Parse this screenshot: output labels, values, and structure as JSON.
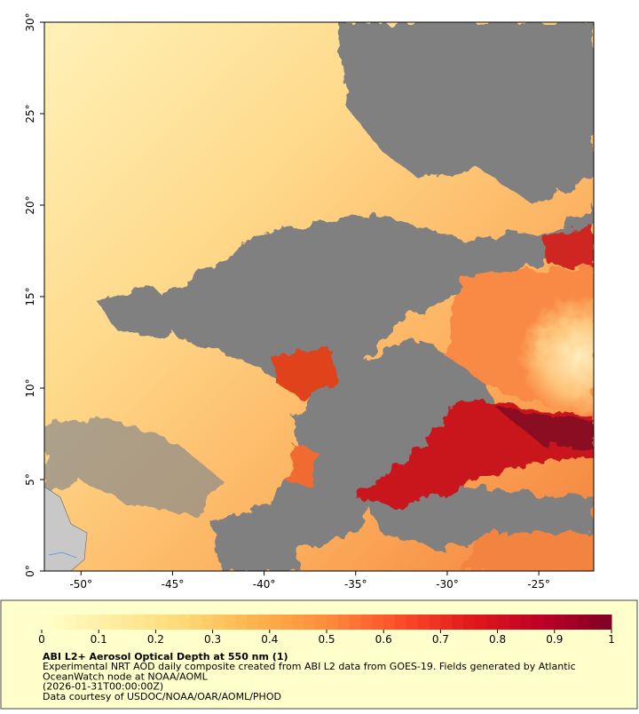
{
  "map": {
    "xlim": [
      -52,
      -22
    ],
    "ylim": [
      0,
      30
    ],
    "xticks": [
      {
        "value": -50,
        "label": "-50°"
      },
      {
        "value": -45,
        "label": "-45°"
      },
      {
        "value": -40,
        "label": "-40°"
      },
      {
        "value": -35,
        "label": "-35°"
      },
      {
        "value": -30,
        "label": "-30°"
      },
      {
        "value": -25,
        "label": "-25°"
      }
    ],
    "yticks": [
      {
        "value": 0,
        "label": "0°"
      },
      {
        "value": 5,
        "label": "5°"
      },
      {
        "value": 10,
        "label": "10°"
      },
      {
        "value": 15,
        "label": "15°"
      },
      {
        "value": 20,
        "label": "20°"
      },
      {
        "value": 25,
        "label": "25°"
      },
      {
        "value": 30,
        "label": "30°"
      }
    ]
  },
  "colorbar": {
    "range": [
      0,
      1
    ],
    "ticks": [
      0,
      0.1,
      0.2,
      0.3,
      0.4,
      0.5,
      0.6,
      0.7,
      0.8,
      0.9,
      1
    ],
    "colors": [
      "#ffffcc",
      "#ffeda0",
      "#fed976",
      "#feb24c",
      "#fd8d3c",
      "#fc4e2a",
      "#e31a1c",
      "#bd0026",
      "#800026"
    ]
  },
  "caption": {
    "title": "ABI L2+ Aerosol Optical Depth at 550 nm (1)",
    "lines": [
      "Experimental NRT AOD daily composite created from ABI L2 data from GOES-19. Fields generated by Atlantic",
      "OceanWatch node at NOAA/AOML",
      "(2026-01-31T00:00:00Z)",
      "Data courtesy of USDOC/NOAA/OAR/AOML/PHOD"
    ]
  }
}
